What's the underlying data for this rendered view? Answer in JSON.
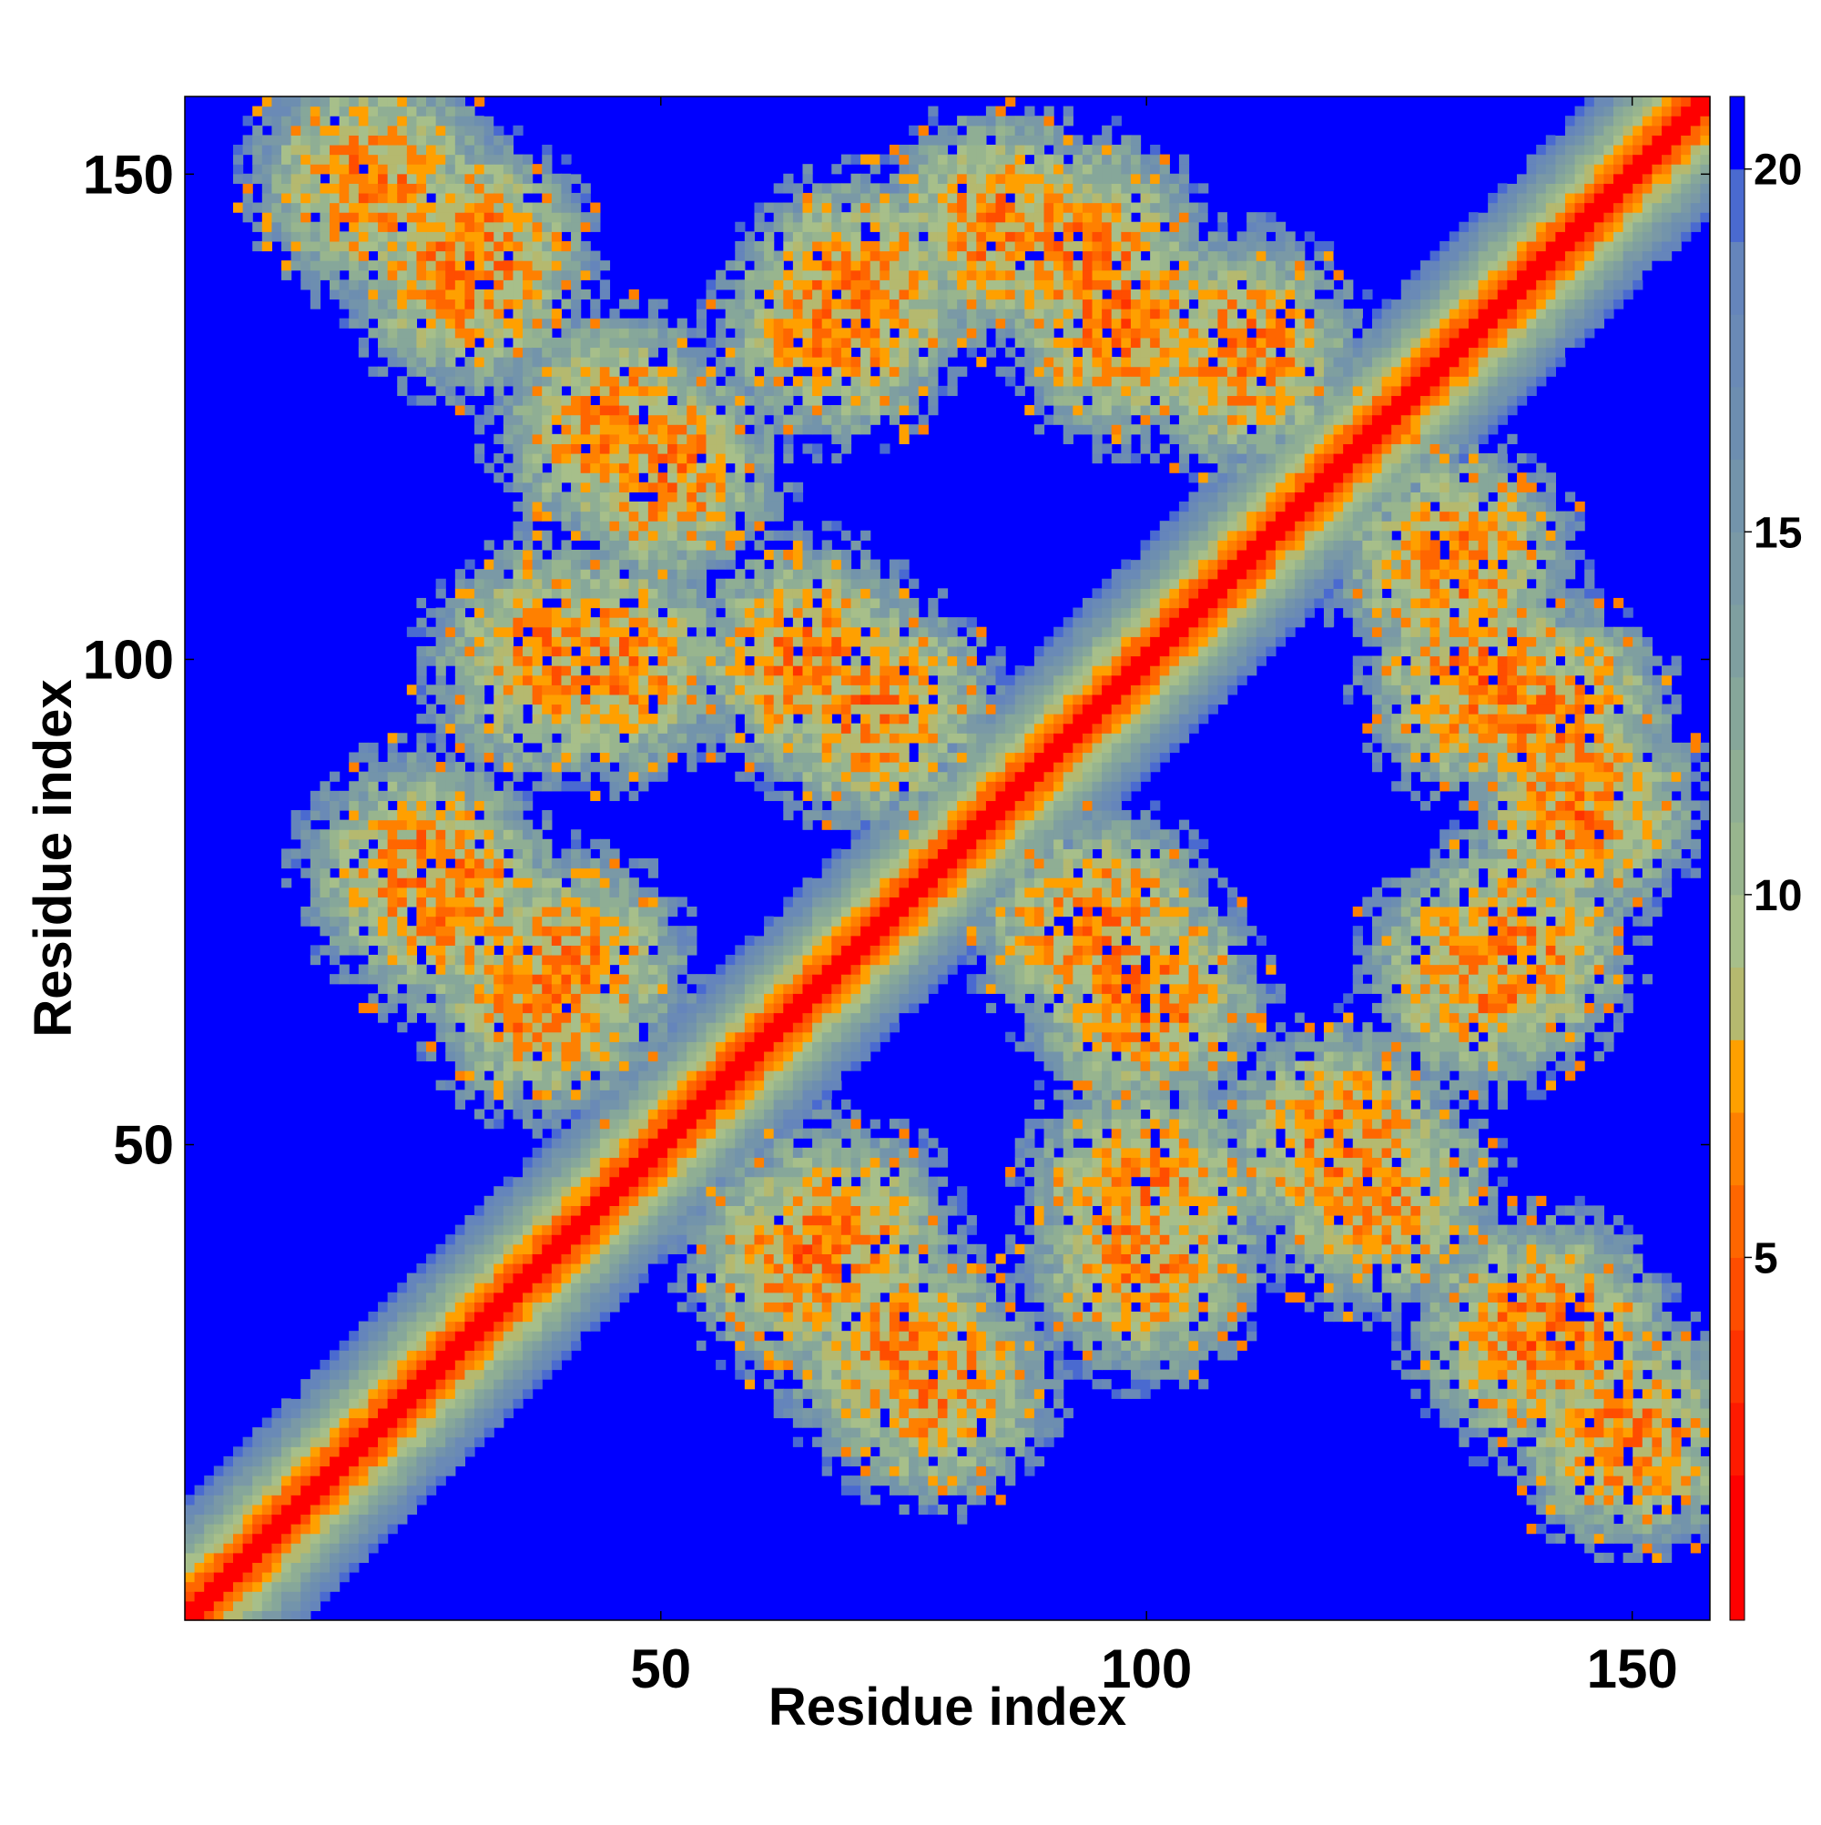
{
  "chart_data": {
    "type": "heatmap",
    "title": "",
    "xlabel": "Residue index",
    "ylabel": "Residue index",
    "xlim": [
      1,
      158
    ],
    "ylim": [
      1,
      158
    ],
    "x_ticks": [
      50,
      100,
      150
    ],
    "y_ticks": [
      50,
      100,
      150
    ],
    "x_tick_labels": [
      "50",
      "100",
      "150"
    ],
    "y_tick_labels": [
      "50",
      "100",
      "150"
    ],
    "grid": false,
    "matrix_size": 158,
    "value_range": [
      0,
      21
    ],
    "colorbar": {
      "position": "right",
      "ticks": [
        5,
        10,
        15,
        20
      ],
      "tick_labels": [
        "5",
        "10",
        "15",
        "20"
      ],
      "levels": [
        {
          "max": 2,
          "color": "#ff0000"
        },
        {
          "max": 3,
          "color": "#ff1a00"
        },
        {
          "max": 4,
          "color": "#ff3300"
        },
        {
          "max": 5,
          "color": "#ff4d00"
        },
        {
          "max": 6,
          "color": "#ff6600"
        },
        {
          "max": 7,
          "color": "#ff8000"
        },
        {
          "max": 8,
          "color": "#ffa000"
        },
        {
          "max": 9,
          "color": "#b5b96f"
        },
        {
          "max": 10,
          "color": "#a7bf8a"
        },
        {
          "max": 11,
          "color": "#98b58e"
        },
        {
          "max": 12,
          "color": "#8fae94"
        },
        {
          "max": 13,
          "color": "#86a79a"
        },
        {
          "max": 14,
          "color": "#7f9fa0"
        },
        {
          "max": 15,
          "color": "#7a99a6"
        },
        {
          "max": 16,
          "color": "#7394ab"
        },
        {
          "max": 17,
          "color": "#6d8eb0"
        },
        {
          "max": 18,
          "color": "#6a8ab6"
        },
        {
          "max": 19,
          "color": "#6585bb"
        },
        {
          "max": 20,
          "color": "#4a6ad0"
        },
        {
          "max": 21,
          "color": "#0000ff"
        }
      ]
    },
    "structure": {
      "description_of_values": "inter-residue distance map, symmetric about the diagonal",
      "diagonal_band": {
        "from": 1,
        "to": 158,
        "core_value": 2,
        "halo_width": 12
      },
      "contact_blobs": [
        {
          "x": 30,
          "y": 142,
          "strength": 0.9
        },
        {
          "x": 45,
          "y": 124,
          "strength": 0.7
        },
        {
          "x": 68,
          "y": 135,
          "strength": 0.8
        },
        {
          "x": 94,
          "y": 142,
          "strength": 0.85
        },
        {
          "x": 110,
          "y": 132,
          "strength": 0.75
        },
        {
          "x": 38,
          "y": 100,
          "strength": 0.75
        },
        {
          "x": 65,
          "y": 100,
          "strength": 0.85
        },
        {
          "x": 135,
          "y": 98,
          "strength": 0.85
        },
        {
          "x": 145,
          "y": 85,
          "strength": 0.75
        },
        {
          "x": 28,
          "y": 75,
          "strength": 0.8
        },
        {
          "x": 40,
          "y": 68,
          "strength": 0.75
        },
        {
          "x": 95,
          "y": 72,
          "strength": 0.85
        },
        {
          "x": 138,
          "y": 70,
          "strength": 0.8
        },
        {
          "x": 65,
          "y": 38,
          "strength": 0.85
        },
        {
          "x": 78,
          "y": 25,
          "strength": 0.75
        },
        {
          "x": 100,
          "y": 45,
          "strength": 0.7
        },
        {
          "x": 120,
          "y": 50,
          "strength": 0.75
        },
        {
          "x": 140,
          "y": 30,
          "strength": 0.85
        },
        {
          "x": 150,
          "y": 20,
          "strength": 0.7
        }
      ]
    }
  }
}
